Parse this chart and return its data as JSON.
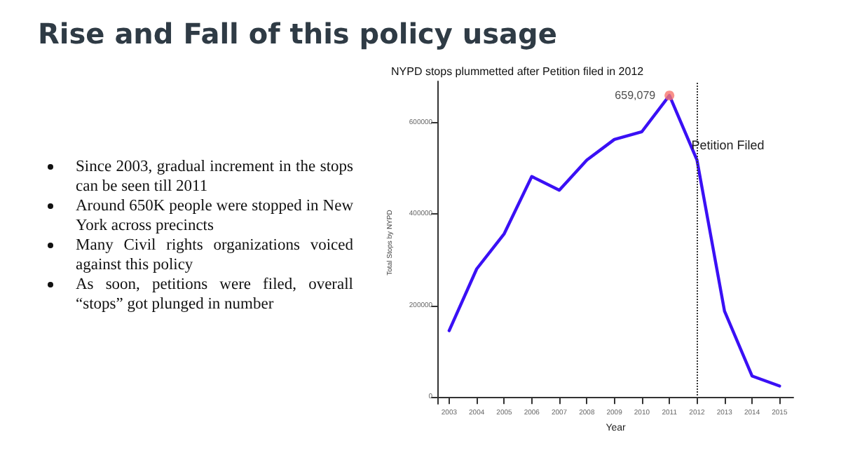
{
  "chart_data": {
    "type": "line",
    "title": "Rise and Fall of this policy usage",
    "subtitle": "NYPD stops plummetted after Petition filed in 2012",
    "xlabel": "Year",
    "ylabel": "Total Stops by NYPD",
    "x": [
      2003,
      2004,
      2005,
      2006,
      2007,
      2008,
      2009,
      2010,
      2011,
      2012,
      2013,
      2014,
      2015
    ],
    "series": [
      {
        "color": "#3a10f5",
        "values": [
          145000,
          280000,
          357000,
          482000,
          452000,
          518000,
          563000,
          580000,
          659079,
          518000,
          188000,
          46000,
          24000
        ]
      },
      {
        "type": "scatter",
        "marker": "circle",
        "color": "#f8766d",
        "x": [
          2011
        ],
        "values": [
          659079
        ]
      }
    ],
    "xlim": [
      2002.6,
      2015.5
    ],
    "xticks": [
      2003,
      2004,
      2005,
      2006,
      2007,
      2008,
      2009,
      2010,
      2011,
      2012,
      2013,
      2014,
      2015
    ],
    "ylim": [
      -15000,
      690000
    ],
    "yticks": [
      0,
      200000,
      400000,
      600000
    ],
    "grid": false,
    "marker": "none",
    "line_style": "solid",
    "ref_lines": [
      {
        "axis": "x",
        "value": 2012,
        "label": "Petition Filed",
        "line_style": "dotted",
        "color": "#333333"
      }
    ],
    "annotations": [
      "Since 2003, gradual increment in the stops can be seen till 2011",
      "Around 650K people were stopped in New York across precincts",
      "Many Civil rights organizations voiced against this policy",
      "As soon, petitions were filed, overall “stops” got plunged in number",
      {
        "text": "659,079",
        "x": 2011,
        "y": 659079
      }
    ]
  }
}
